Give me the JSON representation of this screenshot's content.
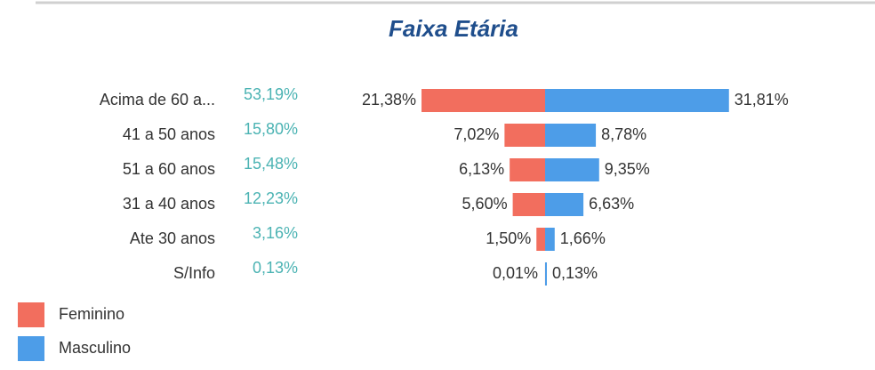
{
  "chart_data": {
    "type": "butterfly",
    "title": "Faixa Etária",
    "categories": [
      "Acima de 60 a...",
      "41 a 50 anos",
      "51 a 60 anos",
      "31 a 40 anos",
      "Ate 30 anos",
      "S/Info"
    ],
    "totals": {
      "color": "#4bb3b3",
      "values": [
        53.19,
        15.8,
        15.48,
        12.23,
        3.16,
        0.13
      ],
      "value_labels": [
        "53,19%",
        "15,80%",
        "15,48%",
        "12,23%",
        "3,16%",
        "0,13%"
      ]
    },
    "series": [
      {
        "name": "Feminino",
        "color": "#f26e5e",
        "values": [
          21.38,
          7.02,
          6.13,
          5.6,
          1.5,
          0.01
        ],
        "value_labels": [
          "21,38%",
          "7,02%",
          "6,13%",
          "5,60%",
          "1,50%",
          "0,01%"
        ]
      },
      {
        "name": "Masculino",
        "color": "#4d9de8",
        "values": [
          31.81,
          8.78,
          9.35,
          6.63,
          1.66,
          0.13
        ],
        "value_labels": [
          "31,81%",
          "8,78%",
          "9,35%",
          "6,63%",
          "1,66%",
          "0,13%"
        ]
      }
    ]
  }
}
